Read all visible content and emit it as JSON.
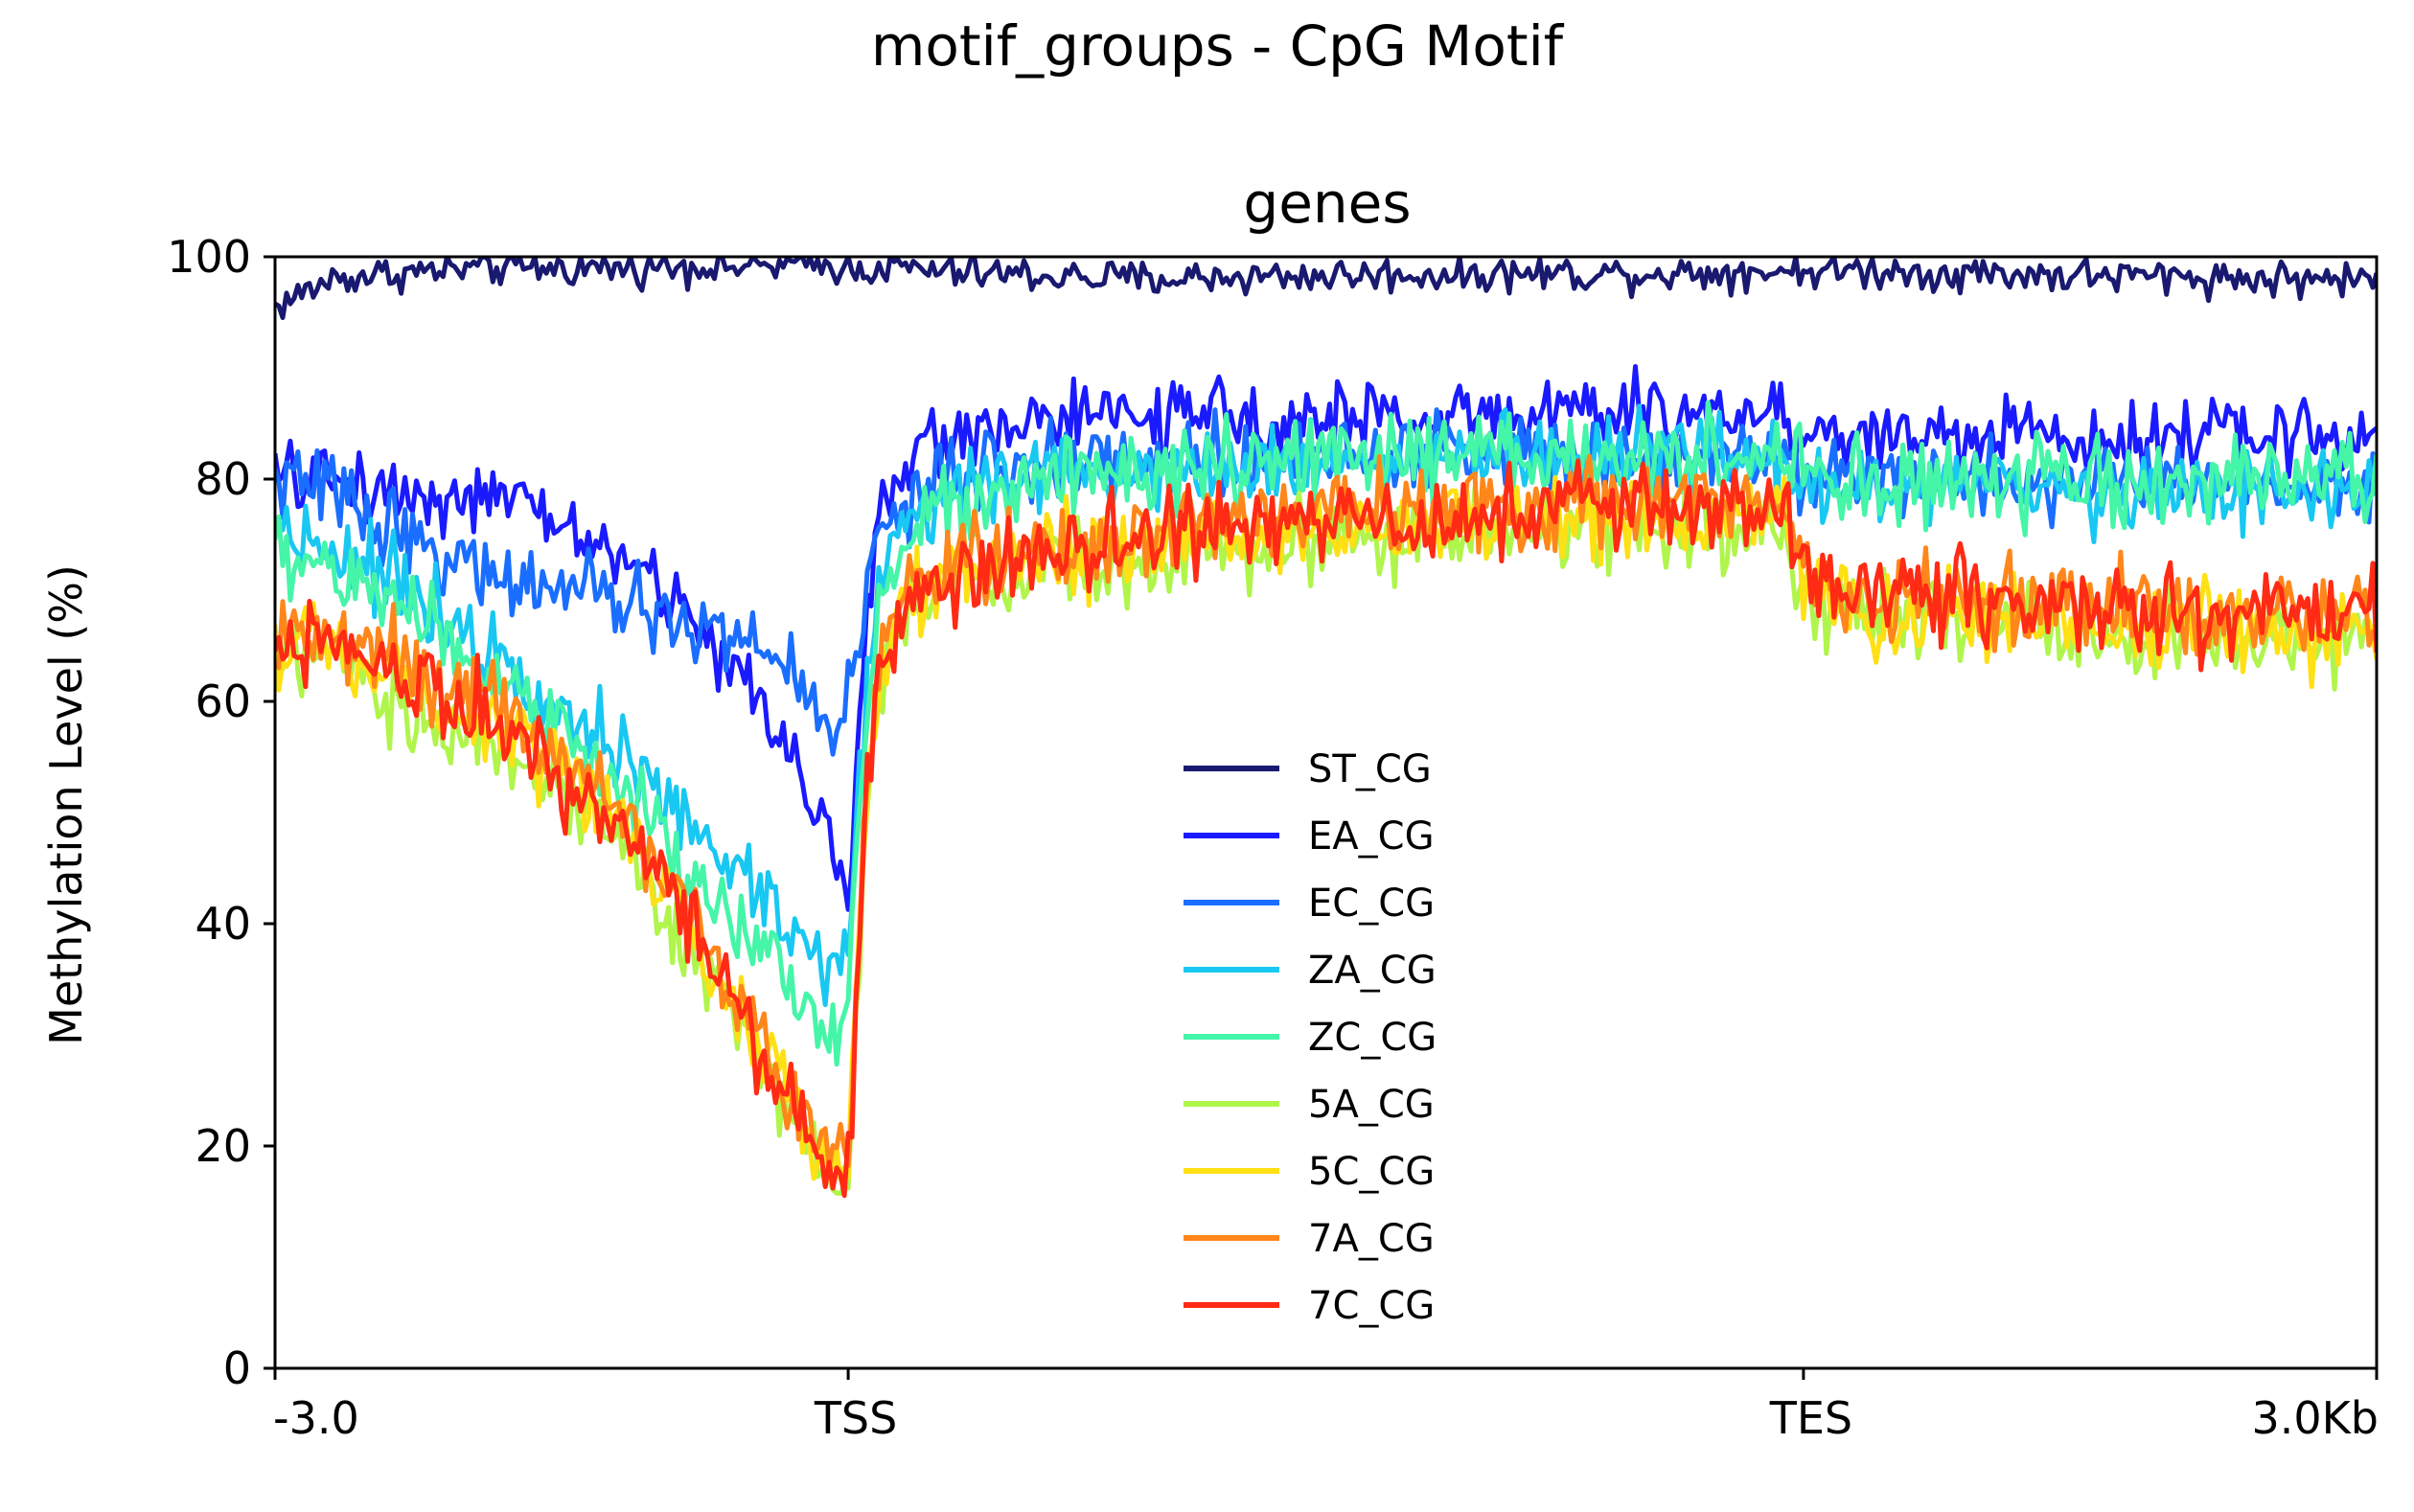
{
  "figure": {
    "suptitle": "motif_groups - CpG Motif"
  },
  "chart_data": {
    "type": "line",
    "title": "genes",
    "ylabel": "Methylation Level (%)",
    "xlabel": "",
    "ylim": [
      0,
      100
    ],
    "y_ticks": [
      0,
      20,
      40,
      60,
      80,
      100
    ],
    "x_ticks": [
      {
        "label": "-3.0",
        "pos": 0
      },
      {
        "label": "TSS",
        "pos": 300
      },
      {
        "label": "TES",
        "pos": 800
      },
      {
        "label": "3.0Kb",
        "pos": 1100
      }
    ],
    "xlim": [
      0,
      1100
    ],
    "grid": false,
    "legend_position": "center",
    "x": [
      0,
      30,
      60,
      90,
      120,
      150,
      180,
      210,
      240,
      260,
      270,
      280,
      285,
      290,
      295,
      300,
      305,
      310,
      315,
      320,
      330,
      340,
      360,
      380,
      400,
      450,
      500,
      550,
      600,
      650,
      700,
      750,
      790,
      800,
      830,
      860,
      900,
      950,
      1000,
      1050,
      1100
    ],
    "series": [
      {
        "name": "ST_CG",
        "color": "#191970",
        "noise": 1.4,
        "values": [
          95.5,
          98,
          98.5,
          98.8,
          99,
          99,
          99,
          99.2,
          99.2,
          99.2,
          99.2,
          99.2,
          99.2,
          99.2,
          99.2,
          99,
          99,
          99,
          99,
          99,
          99,
          98.8,
          98.5,
          98.5,
          98.3,
          98,
          98.2,
          98.3,
          98.4,
          98.5,
          98.5,
          98.6,
          98.8,
          98.8,
          98.8,
          98.6,
          98.5,
          98.3,
          98.2,
          98,
          98
        ]
      },
      {
        "name": "EA_CG",
        "color": "#1a1aff",
        "noise": 2.8,
        "values": [
          80,
          80,
          79,
          78.5,
          78,
          76,
          73,
          69,
          63,
          58,
          56,
          52,
          51,
          48,
          44,
          42,
          55,
          68,
          75,
          78,
          81,
          83,
          84,
          85,
          85.5,
          85.5,
          85.5,
          85.5,
          85.5,
          86,
          86,
          86,
          86,
          84,
          84,
          84,
          84,
          84,
          84,
          84,
          84
        ]
      },
      {
        "name": "EC_CG",
        "color": "#1a6eff",
        "noise": 3.0,
        "values": [
          80,
          79,
          76,
          73,
          71,
          70,
          69,
          67,
          66,
          64,
          63,
          60,
          59,
          58,
          59,
          61,
          64,
          70,
          74,
          76,
          78,
          79,
          80,
          81,
          81.5,
          82,
          82,
          82,
          82.5,
          82.5,
          82.5,
          82.5,
          82.5,
          81,
          80,
          80,
          80,
          80,
          80,
          80,
          80
        ]
      },
      {
        "name": "ZA_CG",
        "color": "#19c8f2",
        "noise": 3.2,
        "values": [
          76,
          74,
          71,
          68,
          64,
          60,
          55,
          50,
          45,
          42,
          40,
          38,
          37,
          36,
          36,
          38,
          50,
          62,
          70,
          73,
          76,
          78,
          79,
          80,
          80.5,
          81,
          81.5,
          81.5,
          82,
          82,
          82,
          82,
          82,
          80,
          79,
          79,
          79,
          79,
          79,
          79,
          79
        ]
      },
      {
        "name": "ZC_CG",
        "color": "#45f5a8",
        "noise": 3.4,
        "values": [
          73,
          72,
          69,
          66,
          62,
          57,
          52,
          46,
          40,
          36,
          34,
          32,
          30,
          30,
          31,
          34,
          48,
          60,
          68,
          72,
          75,
          77,
          78,
          79,
          79.5,
          80.5,
          81,
          81.5,
          82,
          82,
          82,
          82,
          82,
          80,
          79.5,
          79.5,
          79.5,
          79.5,
          79.5,
          79.5,
          79.5
        ]
      },
      {
        "name": "5A_CG",
        "color": "#b0f54b",
        "noise": 3.3,
        "values": [
          64,
          63,
          60,
          58,
          56,
          52,
          47,
          40,
          32,
          26,
          23,
          20,
          18,
          17,
          16,
          17,
          35,
          52,
          60,
          64,
          67,
          69,
          70,
          71,
          72,
          73,
          74,
          74.5,
          75,
          75,
          75.5,
          75.5,
          75.5,
          69,
          68,
          67,
          67,
          66,
          66,
          65,
          65
        ]
      },
      {
        "name": "5C_CG",
        "color": "#ffe014",
        "noise": 3.3,
        "values": [
          65,
          64,
          62,
          60,
          58,
          54,
          49,
          42,
          33,
          27,
          24,
          21,
          19,
          18,
          17,
          18,
          36,
          53,
          61,
          65,
          68,
          70,
          71,
          72,
          73,
          74,
          75,
          75.5,
          76,
          76,
          76.5,
          76.5,
          76.5,
          70,
          68,
          67.5,
          67.5,
          67,
          67,
          66,
          66
        ]
      },
      {
        "name": "7A_CG",
        "color": "#ff861a",
        "noise": 3.3,
        "values": [
          67,
          66,
          64,
          62,
          59,
          55,
          50,
          43,
          34,
          28,
          25,
          22,
          20,
          19,
          18,
          19,
          37,
          54,
          62,
          66,
          69,
          71,
          72,
          73,
          74,
          75,
          76,
          77,
          77.5,
          77.5,
          78,
          78,
          78,
          72,
          70,
          69.5,
          69,
          68.5,
          68,
          68,
          68
        ]
      },
      {
        "name": "7C_CG",
        "color": "#ff2b14",
        "noise": 3.5,
        "values": [
          66,
          65,
          63,
          61,
          58,
          54,
          49,
          42,
          33,
          27,
          24,
          21,
          19,
          18,
          17,
          18,
          36,
          53,
          61,
          65,
          68,
          70,
          71,
          72,
          73,
          74.5,
          75.5,
          76,
          76.5,
          77,
          77.5,
          77.5,
          77.5,
          71,
          70,
          69.5,
          69,
          68.5,
          68,
          68,
          68
        ]
      }
    ]
  }
}
